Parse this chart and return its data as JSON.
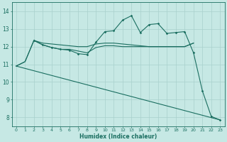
{
  "xlabel": "Humidex (Indice chaleur)",
  "xlim": [
    -0.5,
    23.5
  ],
  "ylim": [
    7.5,
    14.5
  ],
  "yticks": [
    8,
    9,
    10,
    11,
    12,
    13,
    14
  ],
  "xticks": [
    0,
    1,
    2,
    3,
    4,
    5,
    6,
    7,
    8,
    9,
    10,
    11,
    12,
    13,
    14,
    15,
    16,
    17,
    18,
    19,
    20,
    21,
    22,
    23
  ],
  "bg_color": "#c6e8e4",
  "grid_color": "#a8d0cc",
  "line_color": "#1a6e60",
  "series": [
    {
      "x": [
        0,
        1,
        2,
        3,
        4,
        5,
        6,
        7,
        8,
        9,
        10,
        11,
        12,
        13,
        14,
        15,
        16,
        17,
        18,
        19,
        20
      ],
      "y": [
        10.9,
        11.15,
        12.35,
        12.2,
        12.15,
        12.1,
        12.05,
        12.0,
        12.0,
        12.15,
        12.2,
        12.2,
        12.15,
        12.1,
        12.05,
        12.0,
        12.0,
        12.0,
        12.0,
        12.0,
        12.2
      ],
      "has_markers": false
    },
    {
      "x": [
        0,
        1,
        2,
        3,
        4,
        5,
        6,
        7,
        8,
        9,
        10,
        11,
        12,
        13,
        14,
        15,
        16,
        17,
        18,
        19,
        20
      ],
      "y": [
        10.9,
        11.15,
        12.35,
        12.1,
        11.95,
        11.85,
        11.85,
        11.75,
        11.65,
        11.95,
        12.05,
        12.05,
        12.0,
        12.0,
        12.0,
        12.0,
        12.0,
        12.0,
        12.0,
        12.0,
        12.2
      ],
      "has_markers": false
    },
    {
      "x": [
        2,
        3,
        4,
        5,
        6,
        7,
        8,
        9,
        10,
        11,
        12,
        13,
        14,
        15,
        16,
        17,
        18,
        19,
        20,
        21,
        22,
        23
      ],
      "y": [
        12.35,
        12.1,
        11.95,
        11.85,
        11.8,
        11.6,
        11.55,
        12.25,
        12.85,
        12.9,
        13.5,
        13.75,
        12.8,
        13.25,
        13.3,
        12.75,
        12.8,
        12.85,
        11.65,
        9.5,
        8.05,
        7.85
      ],
      "has_markers": true
    },
    {
      "x": [
        0,
        23
      ],
      "y": [
        10.9,
        7.85
      ],
      "has_markers": false
    }
  ]
}
